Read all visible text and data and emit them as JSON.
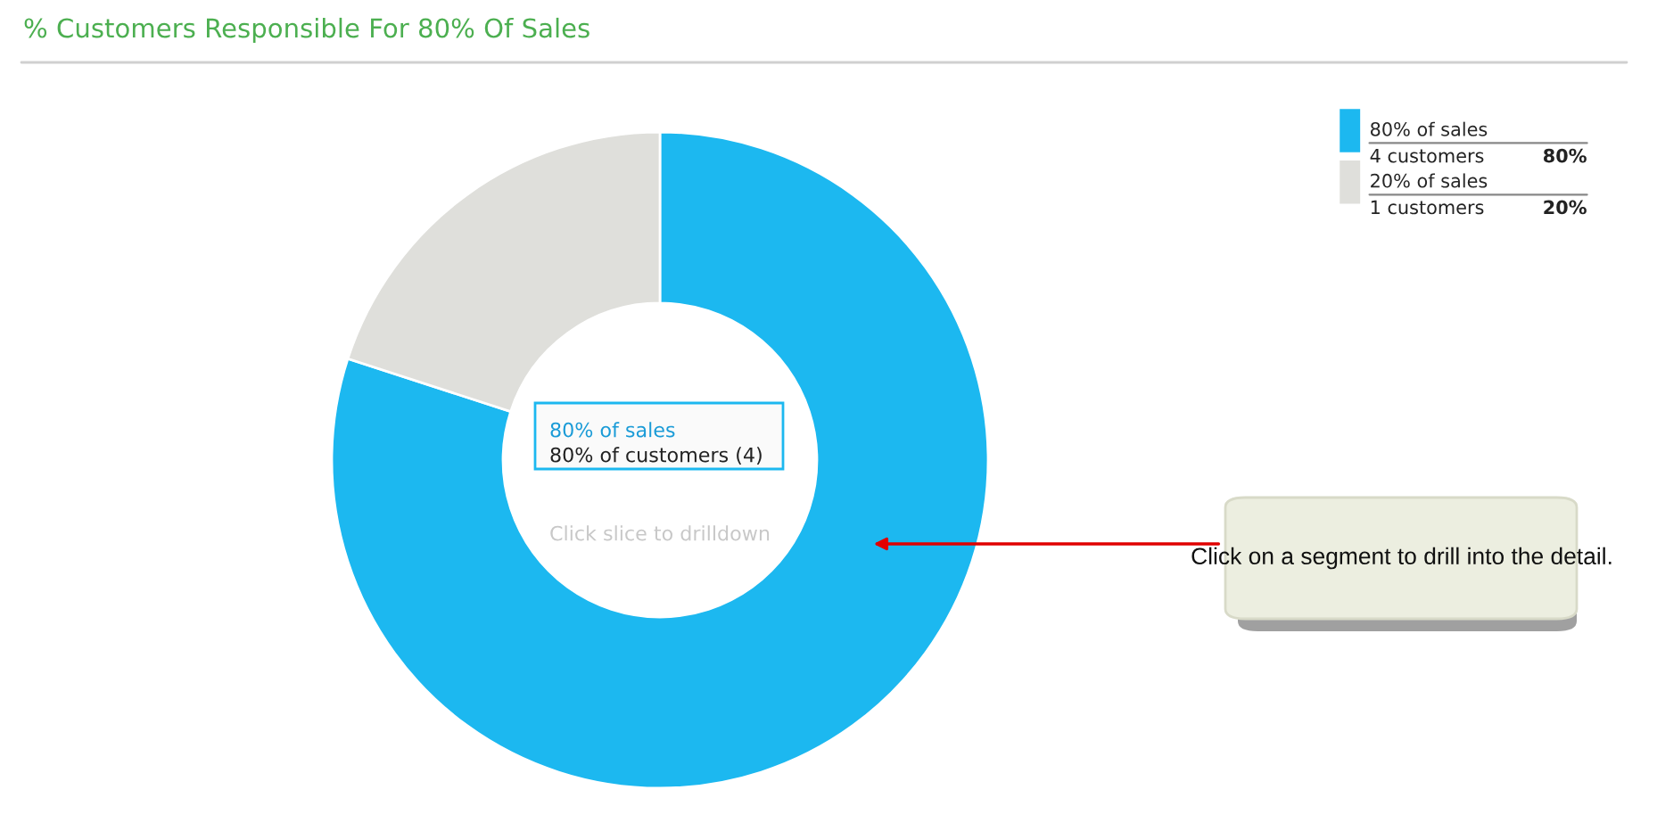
{
  "chart_data": {
    "type": "donut",
    "title": "% Customers Responsible For 80% Of Sales",
    "categories": [
      "80% of sales",
      "20% of sales"
    ],
    "values": [
      80,
      20
    ],
    "colors": [
      "#1cb8f0",
      "#dfdfdb"
    ],
    "legend": "top right",
    "annotations": [
      "4 customers",
      "1 customers",
      "80%",
      "20%",
      "80% of sales",
      "80% of customers (4)",
      "Click slice to drilldown",
      "Click on a segment to drill into the detail."
    ]
  }
}
